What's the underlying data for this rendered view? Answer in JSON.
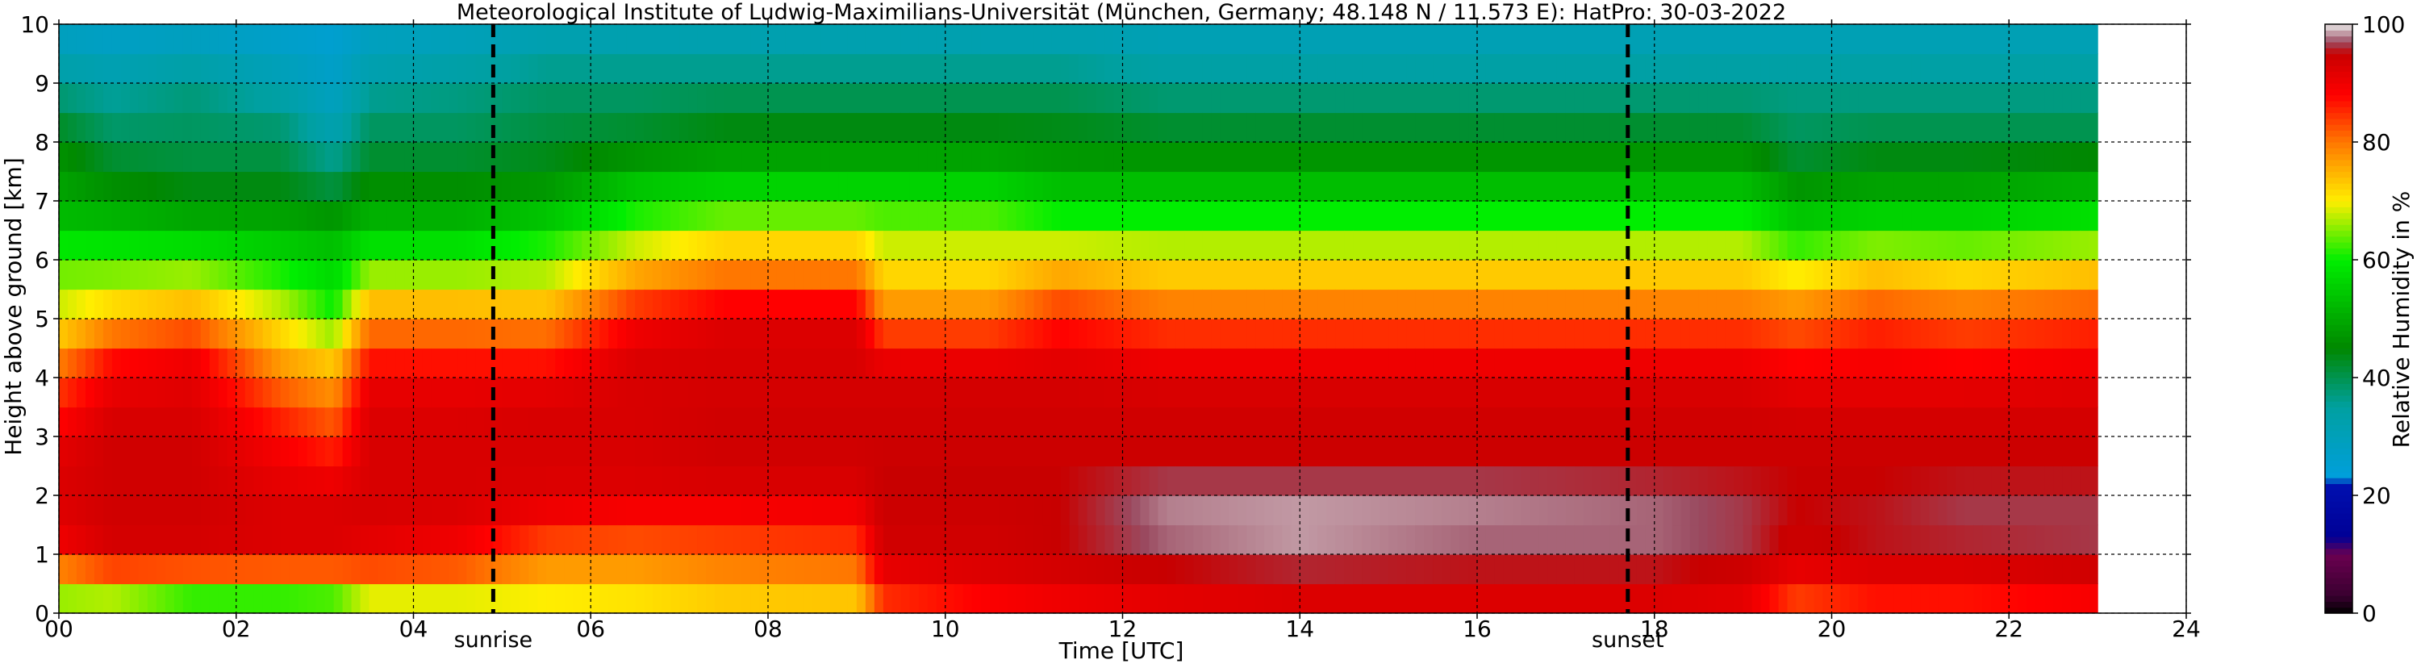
{
  "chart_data": {
    "type": "heatmap",
    "title": "Meteorological Institute of Ludwig-Maximilians-Universität (München, Germany; 48.148 N / 11.573 E):    HatPro: 30-03-2022",
    "xlabel": "Time [UTC]",
    "ylabel": "Height above ground [km]",
    "xlim": [
      0,
      24
    ],
    "ylim": [
      0,
      10
    ],
    "x_ticks": [
      "00",
      "02",
      "04",
      "06",
      "08",
      "10",
      "12",
      "14",
      "16",
      "18",
      "20",
      "22",
      "24"
    ],
    "y_ticks": [
      "0",
      "1",
      "2",
      "3",
      "4",
      "5",
      "6",
      "7",
      "8",
      "9",
      "10"
    ],
    "data_end_hour": 23,
    "grid": "dashed",
    "events": [
      {
        "label": "sunrise",
        "hour": 4.9
      },
      {
        "label": "sunset",
        "hour": 17.7
      }
    ],
    "colorbar": {
      "label": "Relative Humidity in %",
      "ticks": [
        "0",
        "20",
        "40",
        "60",
        "80",
        "100"
      ],
      "range": [
        0,
        100
      ],
      "stops": [
        {
          "value": 0,
          "color": "#000000"
        },
        {
          "value": 3,
          "color": "#3a0030"
        },
        {
          "value": 10,
          "color": "#6a0050"
        },
        {
          "value": 13,
          "color": "#000095"
        },
        {
          "value": 22,
          "color": "#0010b0"
        },
        {
          "value": 23,
          "color": "#009fdc"
        },
        {
          "value": 35,
          "color": "#00a0a0"
        },
        {
          "value": 45,
          "color": "#008800"
        },
        {
          "value": 60,
          "color": "#00ee00"
        },
        {
          "value": 70,
          "color": "#ffee00"
        },
        {
          "value": 80,
          "color": "#ff7700"
        },
        {
          "value": 88,
          "color": "#ff0000"
        },
        {
          "value": 95,
          "color": "#c80000"
        },
        {
          "value": 97,
          "color": "#9a4a60"
        },
        {
          "value": 100,
          "color": "#e8e8e8"
        }
      ]
    },
    "profile_heights_km": [
      0,
      0.5,
      1,
      1.5,
      2,
      2.5,
      3,
      3.5,
      4,
      4.5,
      5,
      5.5,
      6,
      6.5,
      7,
      7.5,
      8,
      8.5,
      9,
      9.5,
      10
    ],
    "profiles": [
      {
        "hour": 0,
        "rh": [
          62,
          70,
          88,
          92,
          92,
          93,
          90,
          86,
          83,
          76,
          70,
          66,
          63,
          55,
          50,
          48,
          45,
          40,
          36,
          30,
          28
        ]
      },
      {
        "hour": 0.6,
        "rh": [
          60,
          74,
          93,
          94,
          94,
          94,
          94,
          92,
          90,
          85,
          75,
          68,
          62,
          55,
          48,
          44,
          40,
          37,
          34,
          29,
          27
        ]
      },
      {
        "hour": 1.5,
        "rh": [
          52,
          72,
          93,
          94,
          94,
          94,
          94,
          92,
          92,
          88,
          78,
          70,
          62,
          53,
          46,
          42,
          40,
          38,
          37,
          30,
          28
        ]
      },
      {
        "hour": 2.5,
        "rh": [
          52,
          72,
          92,
          93,
          92,
          90,
          88,
          84,
          80,
          74,
          70,
          64,
          58,
          52,
          46,
          42,
          40,
          36,
          32,
          28,
          26
        ]
      },
      {
        "hour": 3.1,
        "rh": [
          54,
          72,
          92,
          93,
          92,
          88,
          84,
          80,
          76,
          70,
          62,
          58,
          56,
          50,
          44,
          38,
          34,
          30,
          28,
          26,
          25
        ]
      },
      {
        "hour": 3.5,
        "rh": [
          62,
          76,
          90,
          93,
          93,
          93,
          93,
          92,
          90,
          84,
          78,
          70,
          62,
          54,
          48,
          44,
          40,
          38,
          34,
          30,
          28
        ]
      },
      {
        "hour": 4.5,
        "rh": [
          62,
          76,
          88,
          92,
          93,
          93,
          93,
          92,
          90,
          84,
          78,
          70,
          62,
          54,
          48,
          44,
          40,
          38,
          36,
          31,
          29
        ]
      },
      {
        "hour": 5.5,
        "rh": [
          66,
          74,
          80,
          88,
          92,
          93,
          93,
          93,
          90,
          84,
          77,
          70,
          64,
          58,
          50,
          45,
          42,
          40,
          38,
          34,
          30
        ]
      },
      {
        "hour": 6.5,
        "rh": [
          68,
          74,
          80,
          86,
          92,
          93,
          93,
          93,
          93,
          92,
          88,
          80,
          72,
          64,
          58,
          50,
          44,
          40,
          38,
          34,
          30
        ]
      },
      {
        "hour": 7.5,
        "rh": [
          70,
          76,
          82,
          86,
          92,
          94,
          94,
          94,
          93,
          93,
          92,
          84,
          76,
          68,
          60,
          52,
          46,
          42,
          38,
          34,
          30
        ]
      },
      {
        "hour": 9,
        "rh": [
          70,
          77,
          83,
          87,
          92,
          94,
          94,
          94,
          93,
          93,
          92,
          84,
          76,
          68,
          60,
          52,
          46,
          42,
          38,
          34,
          30
        ]
      },
      {
        "hour": 9.3,
        "rh": [
          82,
          88,
          94,
          94,
          95,
          95,
          94,
          94,
          93,
          88,
          80,
          74,
          70,
          66,
          60,
          52,
          46,
          42,
          38,
          34,
          30
        ]
      },
      {
        "hour": 10.5,
        "rh": [
          86,
          91,
          94,
          94,
          95,
          95,
          94,
          94,
          93,
          88,
          80,
          74,
          70,
          66,
          60,
          52,
          46,
          42,
          38,
          34,
          30
        ]
      },
      {
        "hour": 11.3,
        "rh": [
          88,
          92,
          95,
          95,
          95,
          95,
          94,
          94,
          93,
          90,
          86,
          80,
          72,
          64,
          56,
          50,
          45,
          42,
          38,
          34,
          30
        ]
      },
      {
        "hour": 12.5,
        "rh": [
          90,
          93,
          97,
          98,
          98,
          95,
          94,
          94,
          92,
          88,
          82,
          76,
          70,
          64,
          56,
          50,
          44,
          40,
          36,
          32,
          30
        ]
      },
      {
        "hour": 14,
        "rh": [
          91,
          94,
          98,
          99,
          98,
          95,
          94,
          94,
          92,
          88,
          82,
          76,
          70,
          64,
          56,
          50,
          44,
          40,
          36,
          32,
          30
        ]
      },
      {
        "hour": 16,
        "rh": [
          91,
          94,
          97,
          98,
          98,
          95,
          94,
          94,
          92,
          88,
          82,
          76,
          70,
          64,
          56,
          50,
          44,
          40,
          36,
          32,
          30
        ]
      },
      {
        "hour": 18,
        "rh": [
          91,
          94,
          97,
          98,
          97,
          95,
          94,
          94,
          92,
          88,
          82,
          76,
          70,
          64,
          56,
          50,
          44,
          40,
          36,
          32,
          30
        ]
      },
      {
        "hour": 19,
        "rh": [
          90,
          93,
          96,
          97,
          96,
          95,
          94,
          94,
          92,
          88,
          82,
          76,
          70,
          64,
          56,
          50,
          44,
          40,
          36,
          32,
          30
        ]
      },
      {
        "hour": 19.6,
        "rh": [
          80,
          88,
          94,
          95,
          95,
          95,
          94,
          93,
          90,
          86,
          80,
          74,
          66,
          58,
          50,
          44,
          40,
          38,
          36,
          32,
          30
        ]
      },
      {
        "hour": 20.5,
        "rh": [
          84,
          90,
          95,
          96,
          95,
          95,
          94,
          93,
          90,
          88,
          84,
          78,
          70,
          60,
          52,
          46,
          42,
          38,
          36,
          32,
          30
        ]
      },
      {
        "hour": 21.5,
        "rh": [
          84,
          90,
          95,
          97,
          96,
          95,
          94,
          93,
          90,
          86,
          82,
          76,
          68,
          60,
          52,
          46,
          42,
          38,
          36,
          32,
          30
        ]
      },
      {
        "hour": 23,
        "rh": [
          86,
          92,
          96,
          97,
          96,
          95,
          94,
          93,
          91,
          88,
          84,
          78,
          70,
          62,
          54,
          48,
          42,
          38,
          36,
          32,
          30
        ]
      }
    ]
  }
}
